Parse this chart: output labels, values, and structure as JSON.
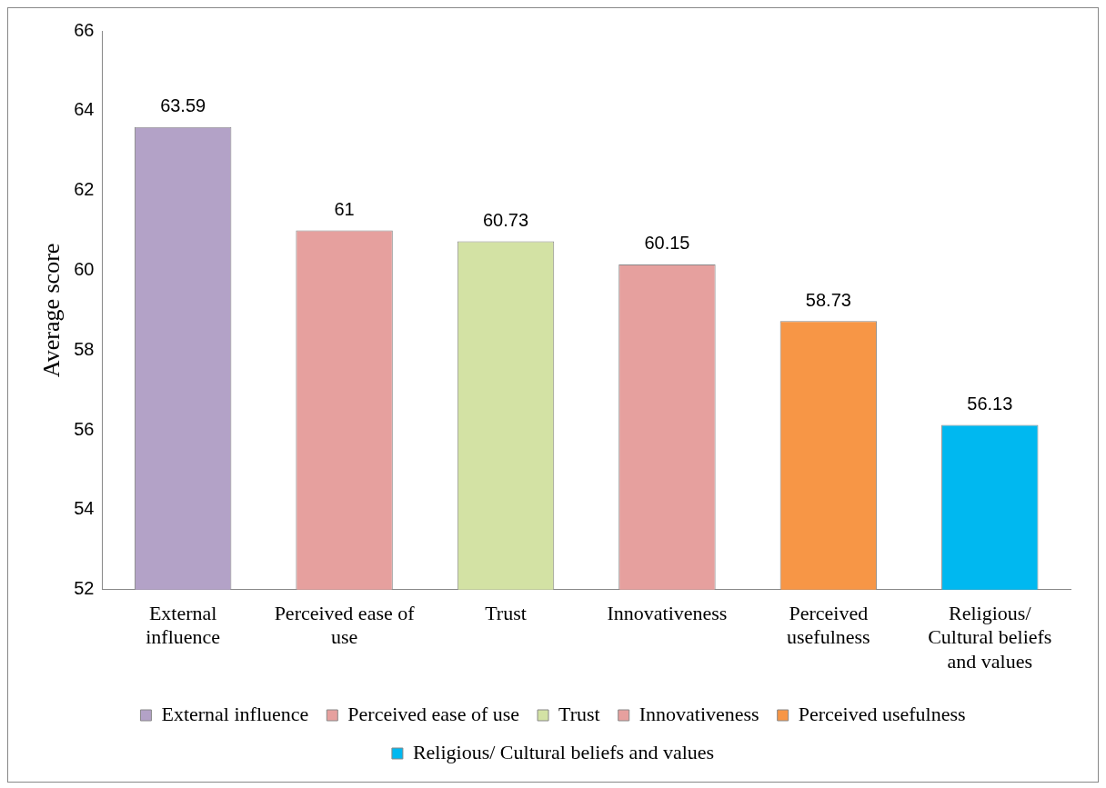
{
  "chart_data": {
    "type": "bar",
    "ylabel": "Average score",
    "categories": [
      "External influence",
      "Perceived ease of use",
      "Trust",
      "Innovativeness",
      "Perceived usefulness",
      "Religious/ Cultural beliefs and values"
    ],
    "series": [
      {
        "name": "External influence",
        "color": "#b3a2c7",
        "values": [
          63.59,
          null,
          null,
          null,
          null,
          null
        ]
      },
      {
        "name": "Perceived ease of use",
        "color": "#e6a09e",
        "values": [
          null,
          61,
          null,
          null,
          null,
          null
        ]
      },
      {
        "name": "Trust",
        "color": "#d3e2a4",
        "values": [
          null,
          null,
          60.73,
          null,
          null,
          null
        ]
      },
      {
        "name": "Innovativeness",
        "color": "#e6a09e",
        "values": [
          null,
          null,
          null,
          60.15,
          null,
          null
        ]
      },
      {
        "name": "Perceived usefulness",
        "color": "#f79646",
        "values": [
          null,
          null,
          null,
          null,
          58.73,
          null
        ]
      },
      {
        "name": "Religious/ Cultural beliefs and values",
        "color": "#00b8f0",
        "values": [
          null,
          null,
          null,
          null,
          null,
          56.13
        ]
      }
    ],
    "ylim": [
      52,
      66
    ],
    "yticks": [
      52,
      54,
      56,
      58,
      60,
      62,
      64,
      66
    ],
    "data_labels": true,
    "grid": false,
    "legend": "bottom"
  }
}
